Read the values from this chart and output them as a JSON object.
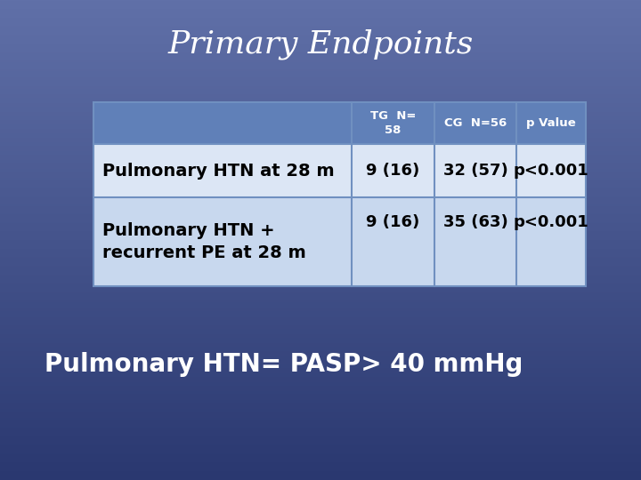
{
  "title": "Primary Endpoints",
  "title_color": "#FFFFFF",
  "title_fontsize": 26,
  "bg_color_top": "#6070a8",
  "bg_color_bottom": "#2a3870",
  "table_header_bg": "#6080b8",
  "table_row1_bg": "#dce6f5",
  "table_row2_bg": "#c8d8ee",
  "table_border_color": "#7090c0",
  "header_cols": [
    "TG  N=\n58",
    "CG  N=56",
    "p Value"
  ],
  "row1_label": "Pulmonary HTN at 28 m",
  "row1_data": [
    "9 (16)",
    "32 (57)",
    "p<0.001"
  ],
  "row2_label": "Pulmonary HTN +\nrecurrent PE at 28 m",
  "row2_data": [
    "9 (16)",
    "35 (63)",
    "p<0.001"
  ],
  "footnote": "Pulmonary HTN= PASP> 40 mmHg",
  "footnote_color": "#FFFFFF",
  "footnote_fontsize": 20,
  "table_text_color": "#000000",
  "header_text_color": "#FFFFFF"
}
